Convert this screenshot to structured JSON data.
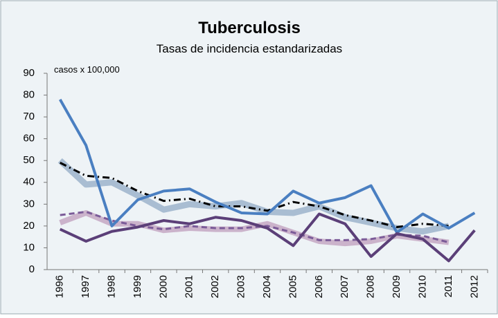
{
  "chart_data": {
    "type": "line",
    "title": "Tuberculosis",
    "subtitle": "Tasas de incidencia estandarizadas",
    "annotation": "casos x 100,000",
    "categories": [
      "1996",
      "1997",
      "1998",
      "1999",
      "2000",
      "2001",
      "2002",
      "2003",
      "2004",
      "2005",
      "2006",
      "2007",
      "2008",
      "2009",
      "2010",
      "2011",
      "2012"
    ],
    "ylim": [
      0,
      90
    ],
    "yticks": [
      0,
      10,
      20,
      30,
      40,
      50,
      60,
      70,
      80,
      90
    ],
    "grid": false,
    "series": [
      {
        "color": "#a9bdd2",
        "line_width": 9,
        "dash": "none",
        "values": [
          50,
          39,
          40,
          34,
          27.5,
          30,
          29,
          30.5,
          26.5,
          26,
          29,
          24,
          21.5,
          19,
          17.5,
          20,
          null
        ]
      },
      {
        "color": "#cbb3cb",
        "line_width": 8,
        "dash": "none",
        "values": [
          21.5,
          26,
          21,
          21,
          18,
          19,
          18.5,
          18.5,
          21,
          17,
          13,
          12,
          13,
          15.5,
          14,
          12.5,
          null
        ]
      },
      {
        "color": "#000000",
        "line_width": 3,
        "dash": "10 5 2 5",
        "values": [
          49,
          43,
          42,
          36,
          31.5,
          32.5,
          29,
          29,
          27,
          31,
          29,
          25,
          22.5,
          19.5,
          21,
          20,
          null
        ]
      },
      {
        "color": "#7b5b98",
        "line_width": 3,
        "dash": "8 5",
        "values": [
          25,
          26.5,
          22.5,
          20,
          18.5,
          20,
          19,
          19,
          20,
          17,
          13.5,
          13.5,
          14,
          16,
          15.5,
          12.5,
          null
        ]
      },
      {
        "color": "#4a7fc1",
        "line_width": 4,
        "dash": "none",
        "values": [
          78,
          57,
          20,
          32,
          36,
          37,
          31,
          26,
          25.5,
          36,
          30.5,
          33,
          38.5,
          17,
          25.5,
          19,
          26
        ]
      },
      {
        "color": "#5b3f78",
        "line_width": 4,
        "dash": "none",
        "values": [
          18.5,
          13,
          17.5,
          19.5,
          22.5,
          21,
          24,
          22.5,
          19,
          11,
          25.5,
          21,
          6,
          16.5,
          14,
          4,
          18
        ]
      }
    ]
  }
}
